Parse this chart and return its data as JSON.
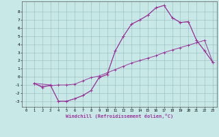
{
  "xlabel": "Windchill (Refroidissement éolien,°C)",
  "bg_color": "#c8e8e8",
  "line_color": "#993399",
  "grid_color": "#99bbbb",
  "xlim": [
    -0.5,
    23.5
  ],
  "ylim": [
    -3.7,
    9.3
  ],
  "xticks": [
    0,
    1,
    2,
    3,
    4,
    5,
    6,
    7,
    8,
    9,
    10,
    11,
    12,
    13,
    14,
    15,
    16,
    17,
    18,
    19,
    20,
    21,
    22,
    23
  ],
  "yticks": [
    -3,
    -2,
    -1,
    0,
    1,
    2,
    3,
    4,
    5,
    6,
    7,
    8
  ],
  "curve1_x": [
    1,
    2,
    3,
    4,
    5,
    6,
    7,
    8,
    9,
    10,
    11,
    12,
    13,
    14,
    15,
    16,
    17,
    18,
    19,
    20,
    21,
    22,
    23
  ],
  "curve1_y": [
    -0.8,
    -1.3,
    -1.0,
    -3.0,
    -3.0,
    -2.7,
    -2.3,
    -1.7,
    -0.1,
    0.3,
    3.2,
    5.0,
    6.5,
    7.0,
    7.6,
    8.5,
    8.8,
    7.3,
    6.7,
    6.8,
    4.5,
    3.2,
    1.8
  ],
  "curve2_x": [
    1,
    2,
    3,
    4,
    5,
    6,
    7,
    8,
    9,
    10,
    11,
    12,
    13,
    14,
    15,
    16,
    17,
    18,
    19,
    20,
    21,
    22,
    23
  ],
  "curve2_y": [
    -0.8,
    -1.2,
    -1.1,
    -1.0,
    -1.0,
    -0.9,
    -0.5,
    -0.1,
    0.1,
    0.5,
    0.9,
    1.3,
    1.7,
    2.0,
    2.3,
    2.6,
    3.0,
    3.3,
    3.6,
    3.9,
    4.2,
    4.5,
    1.8
  ],
  "curve3_x": [
    1,
    3,
    4,
    5,
    6,
    7,
    8,
    9,
    10,
    11,
    12,
    13,
    14,
    15,
    16,
    17,
    18,
    19,
    20,
    21,
    22,
    23
  ],
  "curve3_y": [
    -0.8,
    -1.0,
    -3.0,
    -3.0,
    -2.7,
    -2.3,
    -1.7,
    -0.1,
    0.3,
    3.2,
    5.0,
    6.5,
    7.0,
    7.6,
    8.5,
    8.8,
    7.3,
    6.7,
    6.8,
    4.5,
    3.2,
    1.8
  ]
}
